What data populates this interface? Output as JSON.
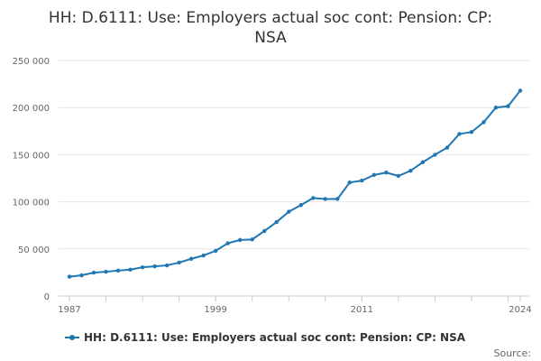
{
  "chart_data": {
    "type": "line",
    "title_lines": [
      "HH: D.6111: Use: Employers actual soc cont: Pension: CP:",
      "NSA"
    ],
    "xlabel": "",
    "ylabel": "",
    "x_tick_labels": [
      "1987",
      "1999",
      "2011",
      "2024"
    ],
    "y_ticks": [
      0,
      50000,
      100000,
      150000,
      200000,
      250000
    ],
    "y_tick_labels": [
      "0",
      "50 000",
      "100 000",
      "150 000",
      "200 000",
      "250 000"
    ],
    "xlim": [
      1987,
      2024
    ],
    "ylim": [
      0,
      250000
    ],
    "grid": true,
    "legend_position": "bottom",
    "series": [
      {
        "name": "HH: D.6111: Use: Employers actual soc cont: Pension: CP: NSA",
        "color": "#1f77b4",
        "x": [
          1987,
          1988,
          1989,
          1990,
          1991,
          1992,
          1993,
          1994,
          1995,
          1996,
          1997,
          1998,
          1999,
          2000,
          2001,
          2002,
          2003,
          2004,
          2005,
          2006,
          2007,
          2008,
          2009,
          2010,
          2011,
          2012,
          2013,
          2014,
          2015,
          2016,
          2017,
          2018,
          2019,
          2020,
          2021,
          2022,
          2023,
          2024
        ],
        "values": [
          20500,
          22000,
          24800,
          25800,
          27000,
          28000,
          30500,
          31500,
          32500,
          35500,
          39500,
          43000,
          48000,
          56000,
          59500,
          60000,
          69000,
          78500,
          89500,
          96500,
          104000,
          103000,
          103000,
          120500,
          122500,
          128500,
          131000,
          127500,
          133000,
          142000,
          150000,
          157500,
          172000,
          174000,
          184500,
          200000,
          201500,
          218000
        ]
      }
    ],
    "source_label": "Source:"
  }
}
